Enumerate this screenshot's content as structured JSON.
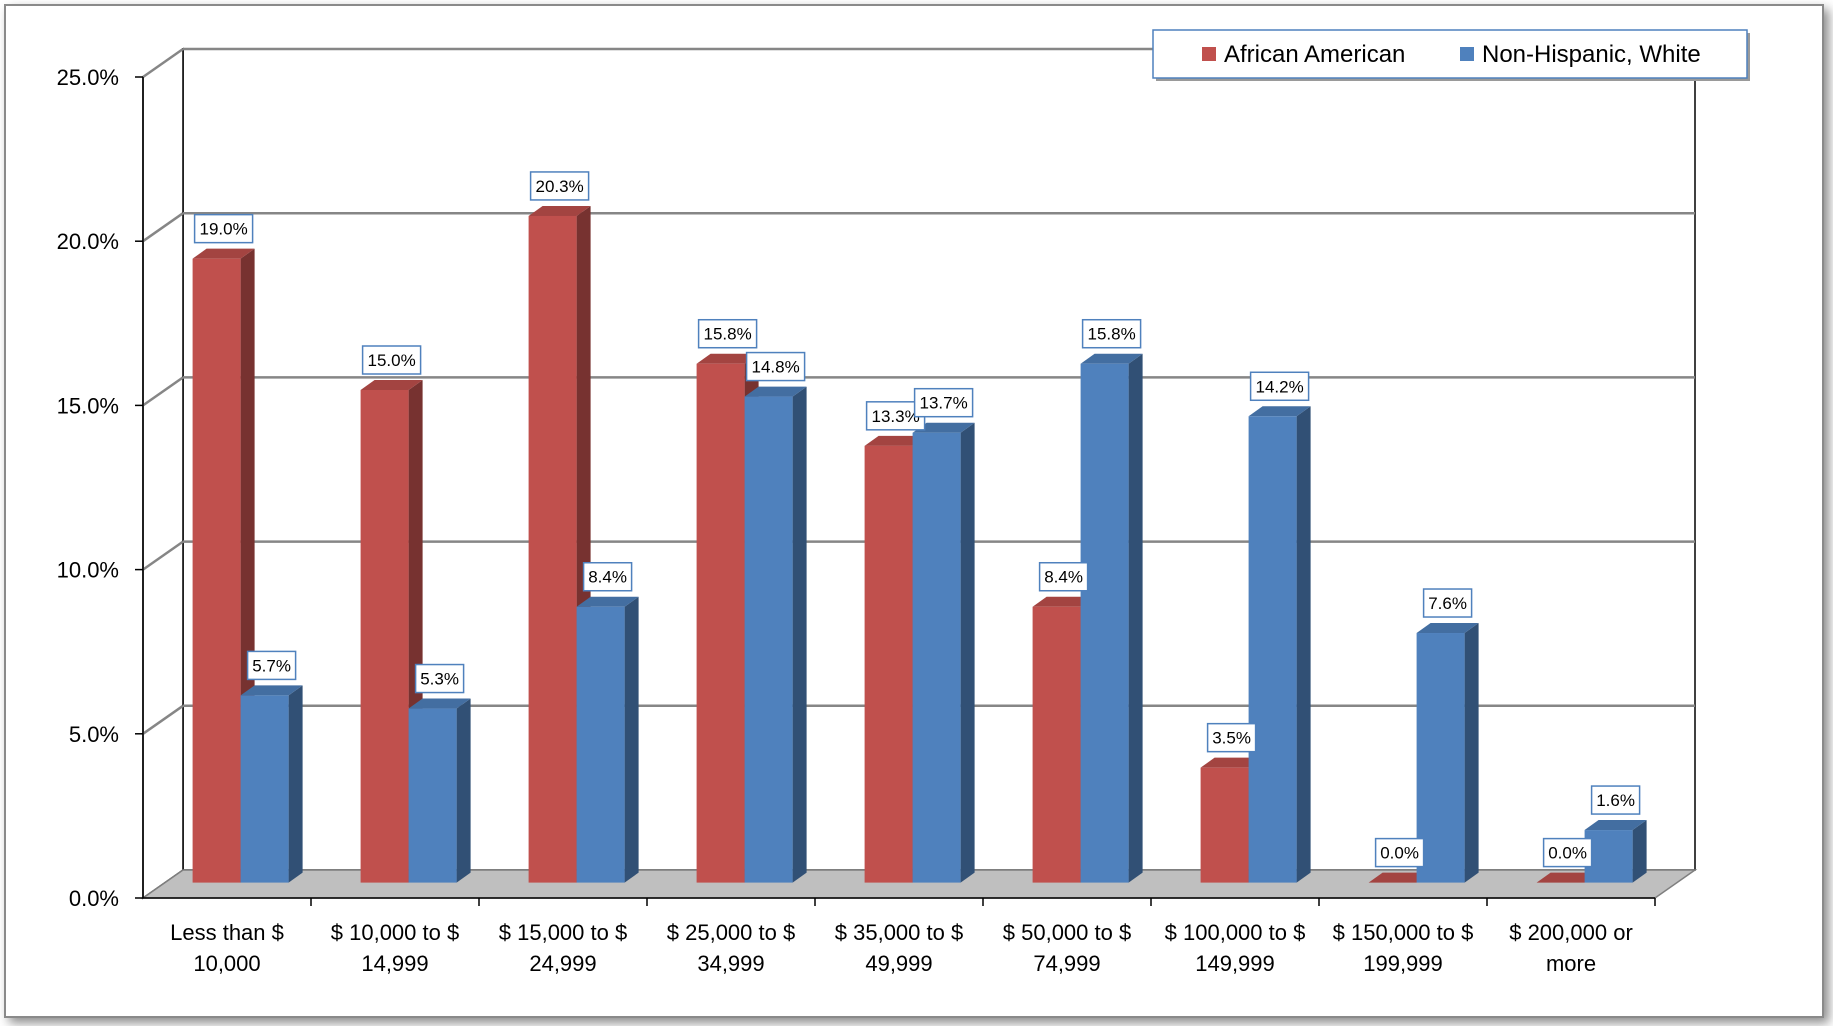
{
  "chart_data": {
    "type": "bar",
    "title": "",
    "xlabel": "",
    "ylabel": "",
    "ylim": [
      0,
      25
    ],
    "y_ticks": [
      "0.0%",
      "5.0%",
      "10.0%",
      "15.0%",
      "20.0%",
      "25.0%"
    ],
    "grid": true,
    "legend_position": "top-right",
    "categories": [
      [
        "Less than $",
        "10,000"
      ],
      [
        "$ 10,000 to $",
        "14,999"
      ],
      [
        "$ 15,000 to  $",
        "24,999"
      ],
      [
        "$ 25,000 to $",
        "34,999"
      ],
      [
        "$ 35,000 to $",
        "49,999"
      ],
      [
        "$ 50,000 to $",
        "74,999"
      ],
      [
        "$ 100,000 to $",
        "149,999"
      ],
      [
        "$ 150,000 to $",
        "199,999"
      ],
      [
        "$ 200,000 or",
        "more"
      ]
    ],
    "series": [
      {
        "name": "African American",
        "color": "#C0504D",
        "values": [
          19.0,
          15.0,
          20.3,
          15.8,
          13.3,
          8.4,
          3.5,
          0.0,
          0.0
        ],
        "labels": [
          "19.0%",
          "15.0%",
          "20.3%",
          "15.8%",
          "13.3%",
          "8.4%",
          "3.5%",
          "0.0%",
          "0.0%"
        ]
      },
      {
        "name": "Non-Hispanic, White",
        "color": "#4F81BD",
        "values": [
          5.7,
          5.3,
          8.4,
          14.8,
          13.7,
          15.8,
          14.2,
          7.6,
          1.6
        ],
        "labels": [
          "5.7%",
          "5.3%",
          "8.4%",
          "14.8%",
          "13.7%",
          "15.8%",
          "14.2%",
          "7.6%",
          "1.6%"
        ]
      }
    ]
  }
}
